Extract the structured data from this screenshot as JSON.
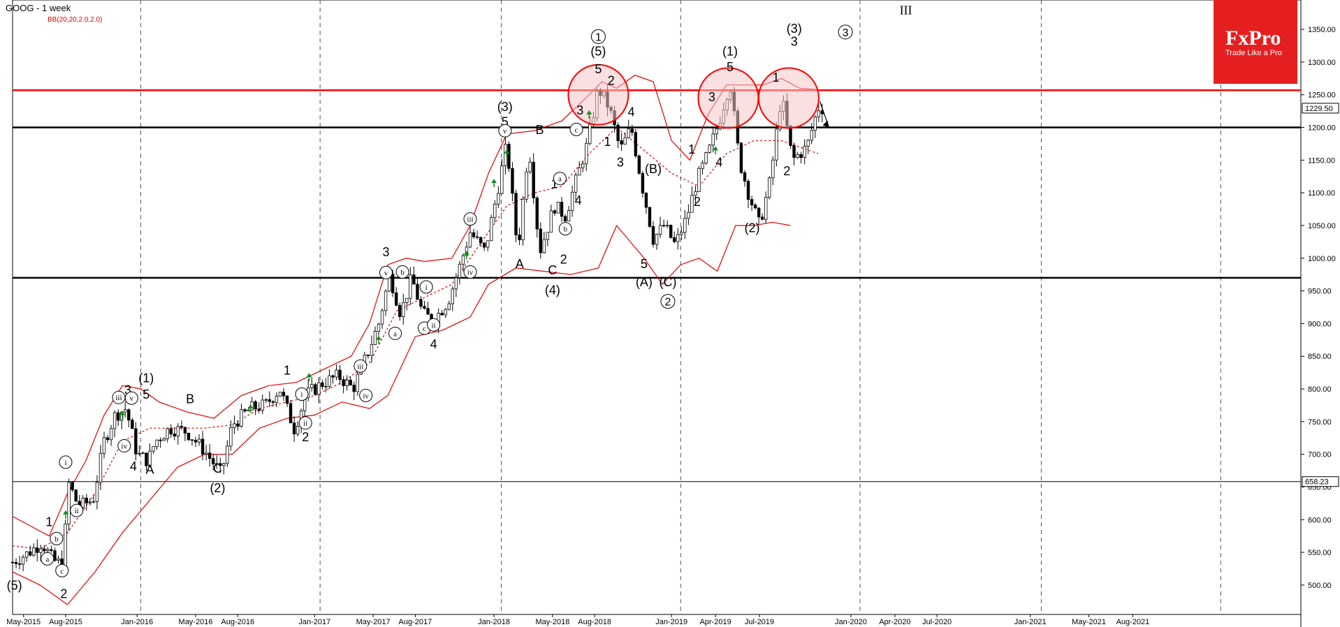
{
  "header": {
    "title": "GOOG - 1 week",
    "indicator": "BB(20,20,2.0,2.0)"
  },
  "logo": {
    "brand": "FxPro",
    "tagline": "Trade Like a Pro"
  },
  "colors": {
    "bands": "#e00000",
    "resistance": "#ff0000",
    "support": "#000000",
    "circle_fill": "#f5c6c6",
    "up_arrow": "#1a8c1a"
  },
  "chart_data": {
    "type": "candlestick",
    "ylim": [
      455,
      1395
    ],
    "yticks": [
      500,
      550,
      600,
      650,
      700,
      750,
      800,
      850,
      900,
      950,
      1000,
      1050,
      1100,
      1150,
      1200,
      1250,
      1300,
      1350
    ],
    "price_tags": [
      {
        "label": "1229.50",
        "value": 1229.5
      },
      {
        "label": "658.23",
        "value": 658.23
      }
    ],
    "x_labels": [
      {
        "text": "May-2015",
        "x": 0.06
      },
      {
        "text": "Aug-2015",
        "x": 0.29
      },
      {
        "text": "Jan-2016",
        "x": 0.68
      },
      {
        "text": "May-2016",
        "x": 1.0
      },
      {
        "text": "Aug-2016",
        "x": 1.23
      },
      {
        "text": "Jan-2017",
        "x": 1.65
      },
      {
        "text": "May-2017",
        "x": 1.97
      },
      {
        "text": "Aug-2017",
        "x": 2.2
      },
      {
        "text": "Jan-2018",
        "x": 2.63
      },
      {
        "text": "May-2018",
        "x": 2.95
      },
      {
        "text": "Aug-2018",
        "x": 3.18
      },
      {
        "text": "Jan-2019",
        "x": 3.6
      },
      {
        "text": "Apr-2019",
        "x": 3.84
      },
      {
        "text": "Jul-2019",
        "x": 4.08
      },
      {
        "text": "Jan-2020",
        "x": 4.58
      },
      {
        "text": "Apr-2020",
        "x": 4.82
      },
      {
        "text": "Jul-2020",
        "x": 5.05
      },
      {
        "text": "Jan-2021",
        "x": 5.56
      },
      {
        "text": "May-2021",
        "x": 5.88
      },
      {
        "text": "Aug-2021",
        "x": 6.12
      }
    ],
    "year_lines": [
      -0.3,
      0.7,
      1.68,
      2.67,
      3.65,
      4.63,
      5.62,
      6.6
    ],
    "horizontal_lines": [
      {
        "value": 1257,
        "color": "red"
      },
      {
        "value": 1200,
        "color": "black"
      },
      {
        "value": 970,
        "color": "black"
      },
      {
        "value": 658.23,
        "color": "black"
      }
    ],
    "price_path": [
      [
        0.0,
        535
      ],
      [
        0.08,
        548
      ],
      [
        0.16,
        565
      ],
      [
        0.22,
        538
      ],
      [
        0.28,
        530
      ],
      [
        0.3,
        660
      ],
      [
        0.36,
        620
      ],
      [
        0.44,
        630
      ],
      [
        0.5,
        720
      ],
      [
        0.56,
        760
      ],
      [
        0.62,
        770
      ],
      [
        0.68,
        700
      ],
      [
        0.74,
        690
      ],
      [
        0.78,
        720
      ],
      [
        0.86,
        740
      ],
      [
        0.95,
        735
      ],
      [
        1.05,
        705
      ],
      [
        1.14,
        670
      ],
      [
        1.2,
        745
      ],
      [
        1.3,
        770
      ],
      [
        1.38,
        775
      ],
      [
        1.46,
        800
      ],
      [
        1.54,
        738
      ],
      [
        1.6,
        790
      ],
      [
        1.7,
        810
      ],
      [
        1.78,
        820
      ],
      [
        1.86,
        800
      ],
      [
        1.94,
        855
      ],
      [
        2.0,
        900
      ],
      [
        2.06,
        975
      ],
      [
        2.12,
        915
      ],
      [
        2.18,
        970
      ],
      [
        2.24,
        915
      ],
      [
        2.3,
        905
      ],
      [
        2.38,
        935
      ],
      [
        2.44,
        985
      ],
      [
        2.5,
        1040
      ],
      [
        2.58,
        1010
      ],
      [
        2.64,
        1090
      ],
      [
        2.7,
        1175
      ],
      [
        2.76,
        1010
      ],
      [
        2.82,
        1175
      ],
      [
        2.88,
        1010
      ],
      [
        2.96,
        1080
      ],
      [
        3.02,
        1065
      ],
      [
        3.08,
        1120
      ],
      [
        3.14,
        1175
      ],
      [
        3.2,
        1260
      ],
      [
        3.26,
        1230
      ],
      [
        3.32,
        1165
      ],
      [
        3.38,
        1200
      ],
      [
        3.44,
        1110
      ],
      [
        3.5,
        1030
      ],
      [
        3.56,
        1050
      ],
      [
        3.62,
        1020
      ],
      [
        3.68,
        1060
      ],
      [
        3.74,
        1120
      ],
      [
        3.8,
        1160
      ],
      [
        3.86,
        1210
      ],
      [
        3.92,
        1270
      ],
      [
        3.97,
        1150
      ],
      [
        4.02,
        1100
      ],
      [
        4.08,
        1050
      ],
      [
        4.14,
        1120
      ],
      [
        4.2,
        1250
      ],
      [
        4.26,
        1150
      ],
      [
        4.34,
        1170
      ],
      [
        4.4,
        1230
      ],
      [
        4.44,
        1229.5
      ]
    ],
    "bb_upper": [
      [
        0.0,
        605
      ],
      [
        0.1,
        590
      ],
      [
        0.2,
        575
      ],
      [
        0.3,
        640
      ],
      [
        0.4,
        690
      ],
      [
        0.5,
        760
      ],
      [
        0.6,
        805
      ],
      [
        0.7,
        800
      ],
      [
        0.8,
        780
      ],
      [
        0.95,
        765
      ],
      [
        1.1,
        755
      ],
      [
        1.25,
        790
      ],
      [
        1.4,
        805
      ],
      [
        1.55,
        810
      ],
      [
        1.7,
        830
      ],
      [
        1.85,
        850
      ],
      [
        1.95,
        900
      ],
      [
        2.05,
        990
      ],
      [
        2.15,
        1000
      ],
      [
        2.25,
        995
      ],
      [
        2.4,
        1000
      ],
      [
        2.5,
        1050
      ],
      [
        2.6,
        1130
      ],
      [
        2.7,
        1190
      ],
      [
        2.85,
        1195
      ],
      [
        3.0,
        1210
      ],
      [
        3.15,
        1250
      ],
      [
        3.22,
        1270
      ],
      [
        3.3,
        1260
      ],
      [
        3.4,
        1280
      ],
      [
        3.5,
        1270
      ],
      [
        3.6,
        1180
      ],
      [
        3.7,
        1150
      ],
      [
        3.8,
        1220
      ],
      [
        3.9,
        1265
      ],
      [
        4.0,
        1265
      ],
      [
        4.1,
        1265
      ],
      [
        4.2,
        1275
      ],
      [
        4.3,
        1260
      ],
      [
        4.4,
        1258
      ]
    ],
    "bb_middle": [
      [
        0.0,
        560
      ],
      [
        0.15,
        555
      ],
      [
        0.3,
        580
      ],
      [
        0.45,
        640
      ],
      [
        0.6,
        720
      ],
      [
        0.75,
        740
      ],
      [
        0.9,
        740
      ],
      [
        1.05,
        740
      ],
      [
        1.2,
        745
      ],
      [
        1.35,
        770
      ],
      [
        1.5,
        780
      ],
      [
        1.65,
        790
      ],
      [
        1.8,
        810
      ],
      [
        1.95,
        840
      ],
      [
        2.1,
        920
      ],
      [
        2.25,
        940
      ],
      [
        2.4,
        960
      ],
      [
        2.55,
        1020
      ],
      [
        2.7,
        1080
      ],
      [
        2.85,
        1100
      ],
      [
        3.0,
        1110
      ],
      [
        3.15,
        1160
      ],
      [
        3.3,
        1200
      ],
      [
        3.45,
        1165
      ],
      [
        3.6,
        1130
      ],
      [
        3.75,
        1110
      ],
      [
        3.9,
        1160
      ],
      [
        4.05,
        1180
      ],
      [
        4.2,
        1180
      ],
      [
        4.35,
        1165
      ],
      [
        4.4,
        1160
      ]
    ],
    "bb_lower": [
      [
        0.0,
        520
      ],
      [
        0.15,
        500
      ],
      [
        0.3,
        470
      ],
      [
        0.45,
        520
      ],
      [
        0.6,
        580
      ],
      [
        0.75,
        630
      ],
      [
        0.9,
        680
      ],
      [
        1.05,
        700
      ],
      [
        1.2,
        700
      ],
      [
        1.35,
        740
      ],
      [
        1.5,
        755
      ],
      [
        1.65,
        760
      ],
      [
        1.8,
        780
      ],
      [
        1.95,
        770
      ],
      [
        2.05,
        790
      ],
      [
        2.2,
        880
      ],
      [
        2.35,
        890
      ],
      [
        2.5,
        910
      ],
      [
        2.6,
        960
      ],
      [
        2.75,
        985
      ],
      [
        2.9,
        980
      ],
      [
        3.05,
        975
      ],
      [
        3.2,
        985
      ],
      [
        3.3,
        1050
      ],
      [
        3.45,
        1000
      ],
      [
        3.55,
        960
      ],
      [
        3.65,
        990
      ],
      [
        3.75,
        1000
      ],
      [
        3.85,
        980
      ],
      [
        3.95,
        1050
      ],
      [
        4.05,
        1050
      ],
      [
        4.15,
        1055
      ],
      [
        4.25,
        1050
      ]
    ],
    "circles": [
      [
        3.2,
        1250
      ],
      [
        3.91,
        1245
      ],
      [
        4.24,
        1245
      ]
    ],
    "forecast_arrow": [
      [
        4.41,
        1240
      ],
      [
        4.46,
        1200
      ]
    ],
    "up_arrows": [
      [
        0.29,
        608
      ],
      [
        0.6,
        760
      ],
      [
        1.3,
        770
      ],
      [
        1.62,
        818
      ],
      [
        2.0,
        875
      ],
      [
        2.48,
        1005
      ],
      [
        2.63,
        1115
      ],
      [
        2.7,
        1160
      ],
      [
        3.15,
        1220
      ],
      [
        3.84,
        1165
      ]
    ],
    "wave_labels": [
      {
        "t": "1",
        "x": 0.2,
        "v": 590
      },
      {
        "t": "(5)",
        "x": 0.01,
        "v": 493
      },
      {
        "t": "2",
        "x": 0.28,
        "v": 480
      },
      {
        "t": "3",
        "x": 0.63,
        "v": 792
      },
      {
        "t": "(1)",
        "x": 0.73,
        "v": 810
      },
      {
        "t": "5",
        "x": 0.73,
        "v": 785
      },
      {
        "t": "4",
        "x": 0.66,
        "v": 675
      },
      {
        "t": "A",
        "x": 0.75,
        "v": 670
      },
      {
        "t": "B",
        "x": 0.97,
        "v": 778
      },
      {
        "t": "C",
        "x": 1.12,
        "v": 672
      },
      {
        "t": "(2)",
        "x": 1.12,
        "v": 642
      },
      {
        "t": "1",
        "x": 1.5,
        "v": 822
      },
      {
        "t": "2",
        "x": 1.6,
        "v": 720
      },
      {
        "t": "3",
        "x": 2.04,
        "v": 1003
      },
      {
        "t": "4",
        "x": 2.3,
        "v": 862
      },
      {
        "t": "(3)",
        "x": 2.69,
        "v": 1225
      },
      {
        "t": "5",
        "x": 2.69,
        "v": 1202
      },
      {
        "t": "A",
        "x": 2.77,
        "v": 985
      },
      {
        "t": "B",
        "x": 2.88,
        "v": 1190
      },
      {
        "t": "C",
        "x": 2.95,
        "v": 975
      },
      {
        "t": "(4)",
        "x": 2.95,
        "v": 945
      },
      {
        "t": "1",
        "x": 2.96,
        "v": 1107
      },
      {
        "t": "2",
        "x": 3.01,
        "v": 992
      },
      {
        "t": "3",
        "x": 3.1,
        "v": 1220
      },
      {
        "t": "4",
        "x": 3.09,
        "v": 1082
      },
      {
        "t": "(5)",
        "x": 3.2,
        "v": 1310
      },
      {
        "t": "5",
        "x": 3.2,
        "v": 1283
      },
      {
        "t": "2",
        "x": 3.27,
        "v": 1265
      },
      {
        "t": "1",
        "x": 3.25,
        "v": 1172
      },
      {
        "t": "3",
        "x": 3.32,
        "v": 1140
      },
      {
        "t": "4",
        "x": 3.38,
        "v": 1217
      },
      {
        "t": "(B)",
        "x": 3.5,
        "v": 1130
      },
      {
        "t": "5",
        "x": 3.45,
        "v": 985
      },
      {
        "t": "(A)",
        "x": 3.45,
        "v": 957
      },
      {
        "t": "(C)",
        "x": 3.58,
        "v": 957
      },
      {
        "t": "1",
        "x": 3.71,
        "v": 1160
      },
      {
        "t": "2",
        "x": 3.74,
        "v": 1080
      },
      {
        "t": "3",
        "x": 3.82,
        "v": 1240
      },
      {
        "t": "4",
        "x": 3.86,
        "v": 1140
      },
      {
        "t": "(1)",
        "x": 3.92,
        "v": 1310
      },
      {
        "t": "5",
        "x": 3.92,
        "v": 1286
      },
      {
        "t": "(2)",
        "x": 4.04,
        "v": 1040
      },
      {
        "t": "1",
        "x": 4.17,
        "v": 1270
      },
      {
        "t": "2",
        "x": 4.23,
        "v": 1127
      },
      {
        "t": "(3)",
        "x": 4.27,
        "v": 1345
      },
      {
        "t": "3",
        "x": 4.27,
        "v": 1325
      }
    ],
    "circled_numbers": [
      {
        "t": "1",
        "x": 3.2,
        "v": 1339
      },
      {
        "t": "2",
        "x": 3.58,
        "v": 934
      },
      {
        "t": "3",
        "x": 4.55,
        "v": 1346
      }
    ],
    "roman_label": {
      "t": "III",
      "x": 4.88,
      "v": 1373
    },
    "roman_circles": [
      {
        "t": "i",
        "x": 0.29,
        "v": 688
      },
      {
        "t": "ii",
        "x": 0.35,
        "v": 614
      },
      {
        "t": "iii",
        "x": 0.58,
        "v": 787
      },
      {
        "t": "iv",
        "x": 0.61,
        "v": 713
      },
      {
        "t": "v",
        "x": 0.65,
        "v": 786
      },
      {
        "t": "a",
        "x": 0.19,
        "v": 540
      },
      {
        "t": "b",
        "x": 0.24,
        "v": 571
      },
      {
        "t": "c",
        "x": 0.27,
        "v": 522
      },
      {
        "t": "i",
        "x": 1.58,
        "v": 792
      },
      {
        "t": "ii",
        "x": 1.6,
        "v": 748
      },
      {
        "t": "iii",
        "x": 1.9,
        "v": 835
      },
      {
        "t": "iv",
        "x": 1.93,
        "v": 790
      },
      {
        "t": "v",
        "x": 2.04,
        "v": 978
      },
      {
        "t": "b",
        "x": 2.13,
        "v": 979
      },
      {
        "t": "a",
        "x": 2.09,
        "v": 885
      },
      {
        "t": "i",
        "x": 2.26,
        "v": 956
      },
      {
        "t": "c",
        "x": 2.25,
        "v": 893
      },
      {
        "t": "ii",
        "x": 2.3,
        "v": 898
      },
      {
        "t": "iii",
        "x": 2.5,
        "v": 1060
      },
      {
        "t": "iv",
        "x": 2.5,
        "v": 979
      },
      {
        "t": "v",
        "x": 2.69,
        "v": 1195
      },
      {
        "t": "a",
        "x": 2.99,
        "v": 1122
      },
      {
        "t": "b",
        "x": 3.02,
        "v": 1045
      },
      {
        "t": "c",
        "x": 3.08,
        "v": 1197
      }
    ]
  }
}
